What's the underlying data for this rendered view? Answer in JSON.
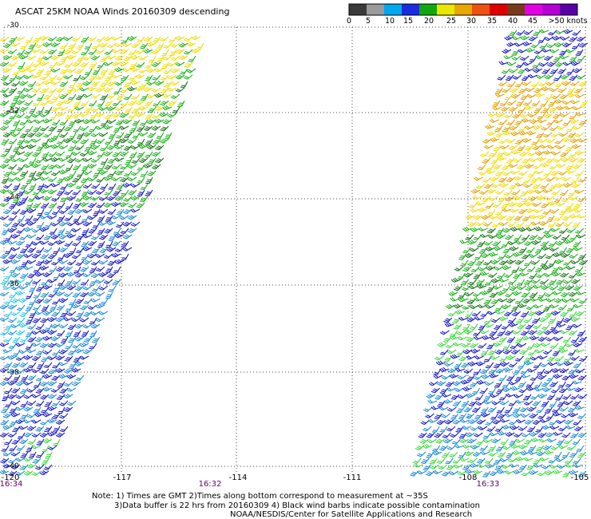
{
  "title": "ASCAT 25KM NOAA Winds 20160309 descending",
  "legend": {
    "colors": [
      "#3a3a3a",
      "#9a9a9a",
      "#00a8ee",
      "#1a2ae0",
      "#10a810",
      "#e8e800",
      "#e8a800",
      "#f05010",
      "#e00000",
      "#7a3a1a",
      "#e400e4",
      "#b400d4",
      "#5a00a8"
    ],
    "tick_labels": [
      "0",
      "5",
      "10",
      "15",
      "20",
      "25",
      "30",
      "35",
      "40",
      "45",
      ">50 knots"
    ]
  },
  "axes": {
    "lat_labels": [
      "-30",
      "-32",
      "-34",
      "-36",
      "-38",
      "-40"
    ],
    "lon_labels": [
      "-120",
      "-117",
      "-114",
      "-111",
      "-108",
      "-105"
    ],
    "grid": "dotted"
  },
  "pass_times": [
    "16:34",
    "16:32",
    "16:33"
  ],
  "wind_colors": {
    "yellow": "#f0dc00",
    "orange": "#e0a000",
    "green": "#18b018",
    "dark_green": "#127012",
    "lime": "#3cd83c",
    "blue": "#1414c8",
    "light_blue": "#1a8ad0",
    "cyan": "#20c8e8"
  },
  "notes": {
    "line1": "Note: 1) Times are GMT 2)Times along bottom correspond to measurement at ~35S",
    "line2": "3)Data buffer is 22 hrs from 20160309 4) Black wind barbs indicate possible contamination",
    "credit": "NOAA/NESDIS/Center for Satellite Applications and Research"
  }
}
